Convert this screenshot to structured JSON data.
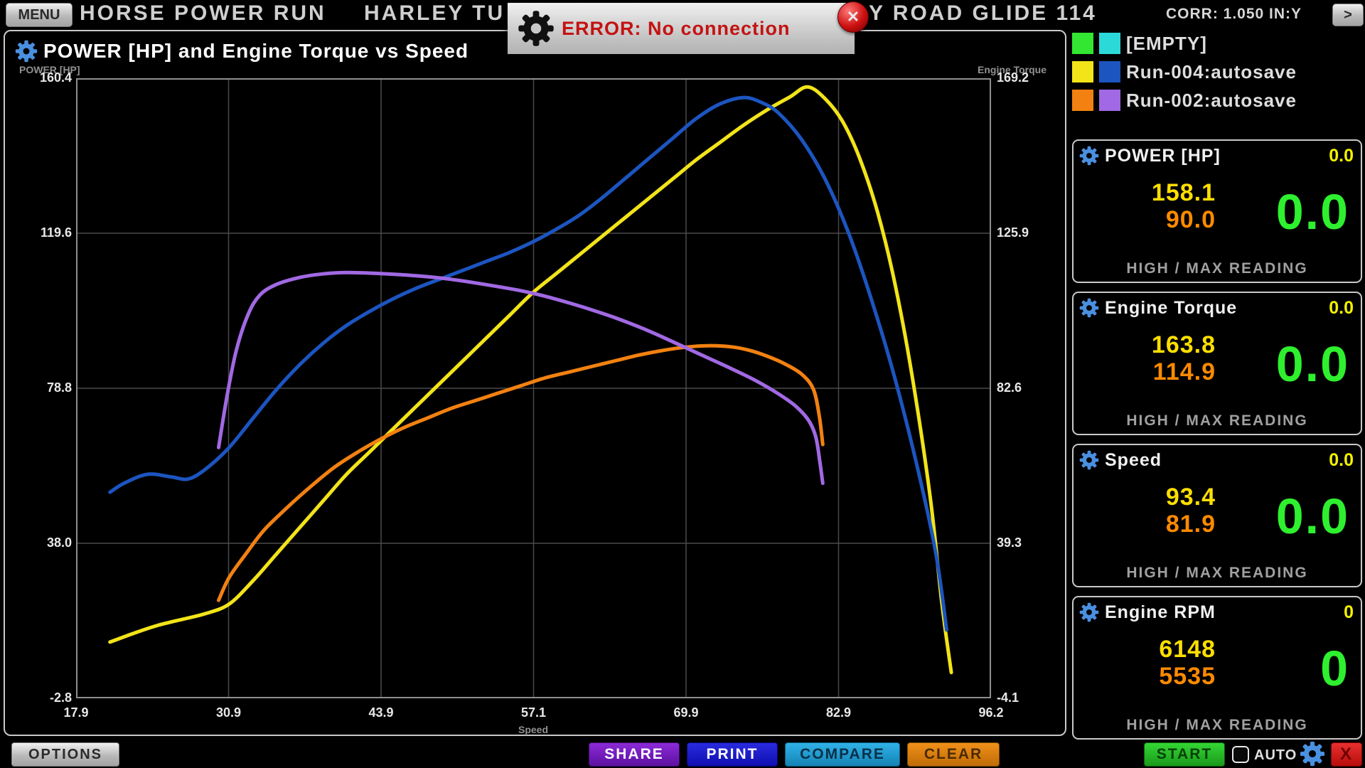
{
  "header": {
    "menu_label": "MENU",
    "app_title": "HORSE POWER RUN",
    "vehicle_left": "HARLEY TU",
    "vehicle_right": "Y ROAD GLIDE 114",
    "corr": "CORR: 1.050  IN:Y",
    "next_label": ">"
  },
  "error_dialog": {
    "text": "ERROR: No connection",
    "close_label": "✕"
  },
  "chart": {
    "title": "POWER [HP] and Engine Torque vs Speed",
    "legend": [
      {
        "label": "[EMPTY]",
        "colors": [
          "#32e632",
          "#2cd9d9"
        ]
      },
      {
        "label": "Run-004:autosave",
        "colors": [
          "#f2e419",
          "#1c55c0"
        ]
      },
      {
        "label": "Run-002:autosave",
        "colors": [
          "#f28111",
          "#a169e3"
        ]
      }
    ]
  },
  "chart_data": {
    "type": "line",
    "title": "POWER [HP] and Engine Torque vs Speed",
    "xlabel": "Speed",
    "grid": true,
    "background": "#000000",
    "legend_position": "top-right-outside",
    "x_range": [
      17.9,
      96.2
    ],
    "x_ticks": [
      "17.9",
      "30.9",
      "43.9",
      "57.1",
      "69.9",
      "82.9",
      "96.2"
    ],
    "left_axis": {
      "label": "POWER [HP]",
      "range": [
        -2.8,
        160.4
      ],
      "ticks": [
        "160.4",
        "119.6",
        "78.8",
        "38.0",
        "-2.8"
      ]
    },
    "right_axis": {
      "label": "Engine Torque",
      "range": [
        -4.1,
        169.2
      ],
      "ticks": [
        "169.2",
        "125.9",
        "82.6",
        "39.3",
        "-4.1"
      ]
    },
    "series": [
      {
        "name": "Run-004 POWER [HP]",
        "axis": "left",
        "color": "#f2e419",
        "points": [
          [
            20.8,
            12
          ],
          [
            23,
            14.5
          ],
          [
            25,
            16.5
          ],
          [
            27,
            18
          ],
          [
            29,
            19.5
          ],
          [
            31,
            22
          ],
          [
            33,
            28
          ],
          [
            35,
            35
          ],
          [
            37,
            42
          ],
          [
            39,
            49
          ],
          [
            41,
            56
          ],
          [
            43,
            62
          ],
          [
            45,
            68
          ],
          [
            47,
            74
          ],
          [
            49,
            80
          ],
          [
            51,
            86
          ],
          [
            53,
            92
          ],
          [
            55,
            98
          ],
          [
            57,
            104
          ],
          [
            59,
            109
          ],
          [
            61,
            114
          ],
          [
            63,
            119
          ],
          [
            65,
            124
          ],
          [
            67,
            129
          ],
          [
            69,
            134
          ],
          [
            71,
            139
          ],
          [
            73,
            143.5
          ],
          [
            75,
            148
          ],
          [
            77,
            152
          ],
          [
            79,
            155.5
          ],
          [
            80.5,
            158.1
          ],
          [
            82,
            155
          ],
          [
            83.5,
            149
          ],
          [
            85,
            139
          ],
          [
            86.5,
            125
          ],
          [
            88,
            106
          ],
          [
            89.5,
            81
          ],
          [
            91,
            50
          ],
          [
            92,
            22
          ],
          [
            92.8,
            4
          ]
        ]
      },
      {
        "name": "Run-004 Engine Torque",
        "axis": "right",
        "color": "#1c55c0",
        "points": [
          [
            20.8,
            53.5
          ],
          [
            22,
            56
          ],
          [
            24,
            58.5
          ],
          [
            26,
            57.8
          ],
          [
            27.5,
            57.2
          ],
          [
            29,
            60
          ],
          [
            31,
            66
          ],
          [
            33,
            74
          ],
          [
            35,
            82
          ],
          [
            37,
            89
          ],
          [
            39,
            95
          ],
          [
            41,
            100
          ],
          [
            43,
            104
          ],
          [
            45,
            107.5
          ],
          [
            47,
            110.5
          ],
          [
            49,
            113
          ],
          [
            51,
            115.5
          ],
          [
            53,
            118
          ],
          [
            55,
            120.5
          ],
          [
            57,
            123.5
          ],
          [
            59,
            127
          ],
          [
            61,
            131
          ],
          [
            63,
            136
          ],
          [
            65,
            141.5
          ],
          [
            67,
            147
          ],
          [
            69,
            152.5
          ],
          [
            71,
            158
          ],
          [
            73,
            162
          ],
          [
            75,
            163.8
          ],
          [
            76.5,
            162.5
          ],
          [
            78,
            159.5
          ],
          [
            80,
            152
          ],
          [
            82,
            141
          ],
          [
            84,
            126
          ],
          [
            86,
            107
          ],
          [
            88,
            85
          ],
          [
            90,
            59
          ],
          [
            91.5,
            36
          ],
          [
            92.4,
            15
          ]
        ]
      },
      {
        "name": "Run-002 POWER [HP]",
        "axis": "left",
        "color": "#f28111",
        "points": [
          [
            30.1,
            23
          ],
          [
            31,
            29
          ],
          [
            32.5,
            35.5
          ],
          [
            34,
            41.5
          ],
          [
            36,
            47.5
          ],
          [
            38,
            53
          ],
          [
            40,
            58
          ],
          [
            42,
            62
          ],
          [
            44,
            65.5
          ],
          [
            46,
            68.5
          ],
          [
            48,
            71
          ],
          [
            50,
            73.5
          ],
          [
            52,
            75.5
          ],
          [
            54,
            77.5
          ],
          [
            56,
            79.5
          ],
          [
            58,
            81.5
          ],
          [
            60,
            83
          ],
          [
            62,
            84.5
          ],
          [
            64,
            86
          ],
          [
            66,
            87.5
          ],
          [
            68,
            88.7
          ],
          [
            70,
            89.6
          ],
          [
            72,
            90
          ],
          [
            74,
            89.7
          ],
          [
            75.5,
            88.8
          ],
          [
            77,
            87.3
          ],
          [
            78.5,
            85.3
          ],
          [
            80,
            82.5
          ],
          [
            81,
            78.5
          ],
          [
            81.5,
            71.5
          ],
          [
            81.8,
            64
          ]
        ]
      },
      {
        "name": "Run-002 Engine Torque",
        "axis": "right",
        "color": "#a169e3",
        "points": [
          [
            30.1,
            66
          ],
          [
            30.8,
            80
          ],
          [
            31.6,
            93
          ],
          [
            32.6,
            103
          ],
          [
            33.6,
            108.5
          ],
          [
            35,
            111.5
          ],
          [
            37,
            113.5
          ],
          [
            39,
            114.5
          ],
          [
            41,
            114.9
          ],
          [
            44,
            114.6
          ],
          [
            47,
            114
          ],
          [
            50,
            113
          ],
          [
            53,
            111.5
          ],
          [
            56,
            109.8
          ],
          [
            58,
            108.3
          ],
          [
            60,
            106.5
          ],
          [
            62,
            104.5
          ],
          [
            64,
            102.3
          ],
          [
            66,
            99.8
          ],
          [
            68,
            97
          ],
          [
            70,
            94
          ],
          [
            72,
            91
          ],
          [
            74,
            88
          ],
          [
            76,
            84.8
          ],
          [
            78,
            81
          ],
          [
            79.5,
            77.5
          ],
          [
            80.6,
            73.5
          ],
          [
            81.2,
            69
          ],
          [
            81.55,
            62
          ],
          [
            81.8,
            56
          ]
        ]
      }
    ]
  },
  "panels": [
    {
      "title": "POWER [HP]",
      "live": "0.0",
      "high": "158.1",
      "max": "90.0",
      "big": "0.0",
      "footer": "HIGH / MAX READING"
    },
    {
      "title": "Engine Torque",
      "live": "0.0",
      "high": "163.8",
      "max": "114.9",
      "big": "0.0",
      "footer": "HIGH / MAX READING"
    },
    {
      "title": "Speed",
      "live": "0.0",
      "high": "93.4",
      "max": "81.9",
      "big": "0.0",
      "footer": "HIGH / MAX READING"
    },
    {
      "title": "Engine RPM",
      "live": "0",
      "high": "6148",
      "max": "5535",
      "big": "0",
      "footer": "HIGH / MAX READING"
    }
  ],
  "bottom_bar": {
    "options": "OPTIONS",
    "share": "SHARE",
    "print": "PRINT",
    "compare": "COMPARE",
    "clear": "CLEAR",
    "start": "START",
    "auto": "AUTO",
    "close": "X"
  }
}
